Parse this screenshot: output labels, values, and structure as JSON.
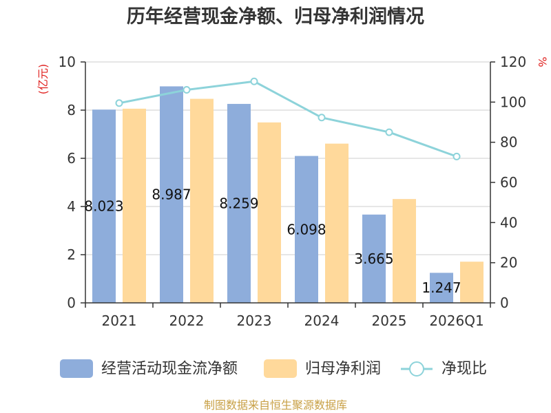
{
  "chart_data": {
    "type": "bar",
    "title": "历年经营现金净额、归母净利润情况",
    "categories": [
      "2021",
      "2022",
      "2023",
      "2024",
      "2025",
      "2026Q1"
    ],
    "y_left": {
      "label": "(亿元)",
      "range": [
        0,
        10
      ],
      "ticks": [
        0,
        2,
        4,
        6,
        8,
        10
      ]
    },
    "y_right": {
      "label": "%",
      "range": [
        0,
        120
      ],
      "ticks": [
        0,
        20,
        40,
        60,
        80,
        100,
        120
      ]
    },
    "series": [
      {
        "name": "经营活动现金流净额",
        "type": "bar",
        "axis": "left",
        "color": "#8eaddb",
        "values": [
          8.023,
          8.987,
          8.259,
          6.098,
          3.665,
          1.247
        ],
        "show_data_labels": true
      },
      {
        "name": "归母净利润",
        "type": "bar",
        "axis": "left",
        "color": "#ffd99b",
        "values": [
          8.06,
          8.47,
          7.49,
          6.61,
          4.31,
          1.71
        ],
        "show_data_labels": false
      },
      {
        "name": "净现比",
        "type": "line",
        "axis": "right",
        "color": "#8dd3da",
        "values": [
          99.5,
          106.1,
          110.3,
          92.3,
          85.0,
          72.9
        ],
        "show_data_labels": false
      }
    ],
    "legend": "bottom",
    "grid": true
  },
  "footer": {
    "source": "制图数据来自恒生聚源数据库"
  },
  "colors": {
    "axis_name": "#e0201e",
    "axis_line": "#333333",
    "grid_line": "#cccccc",
    "footer_text": "#c8a046"
  }
}
